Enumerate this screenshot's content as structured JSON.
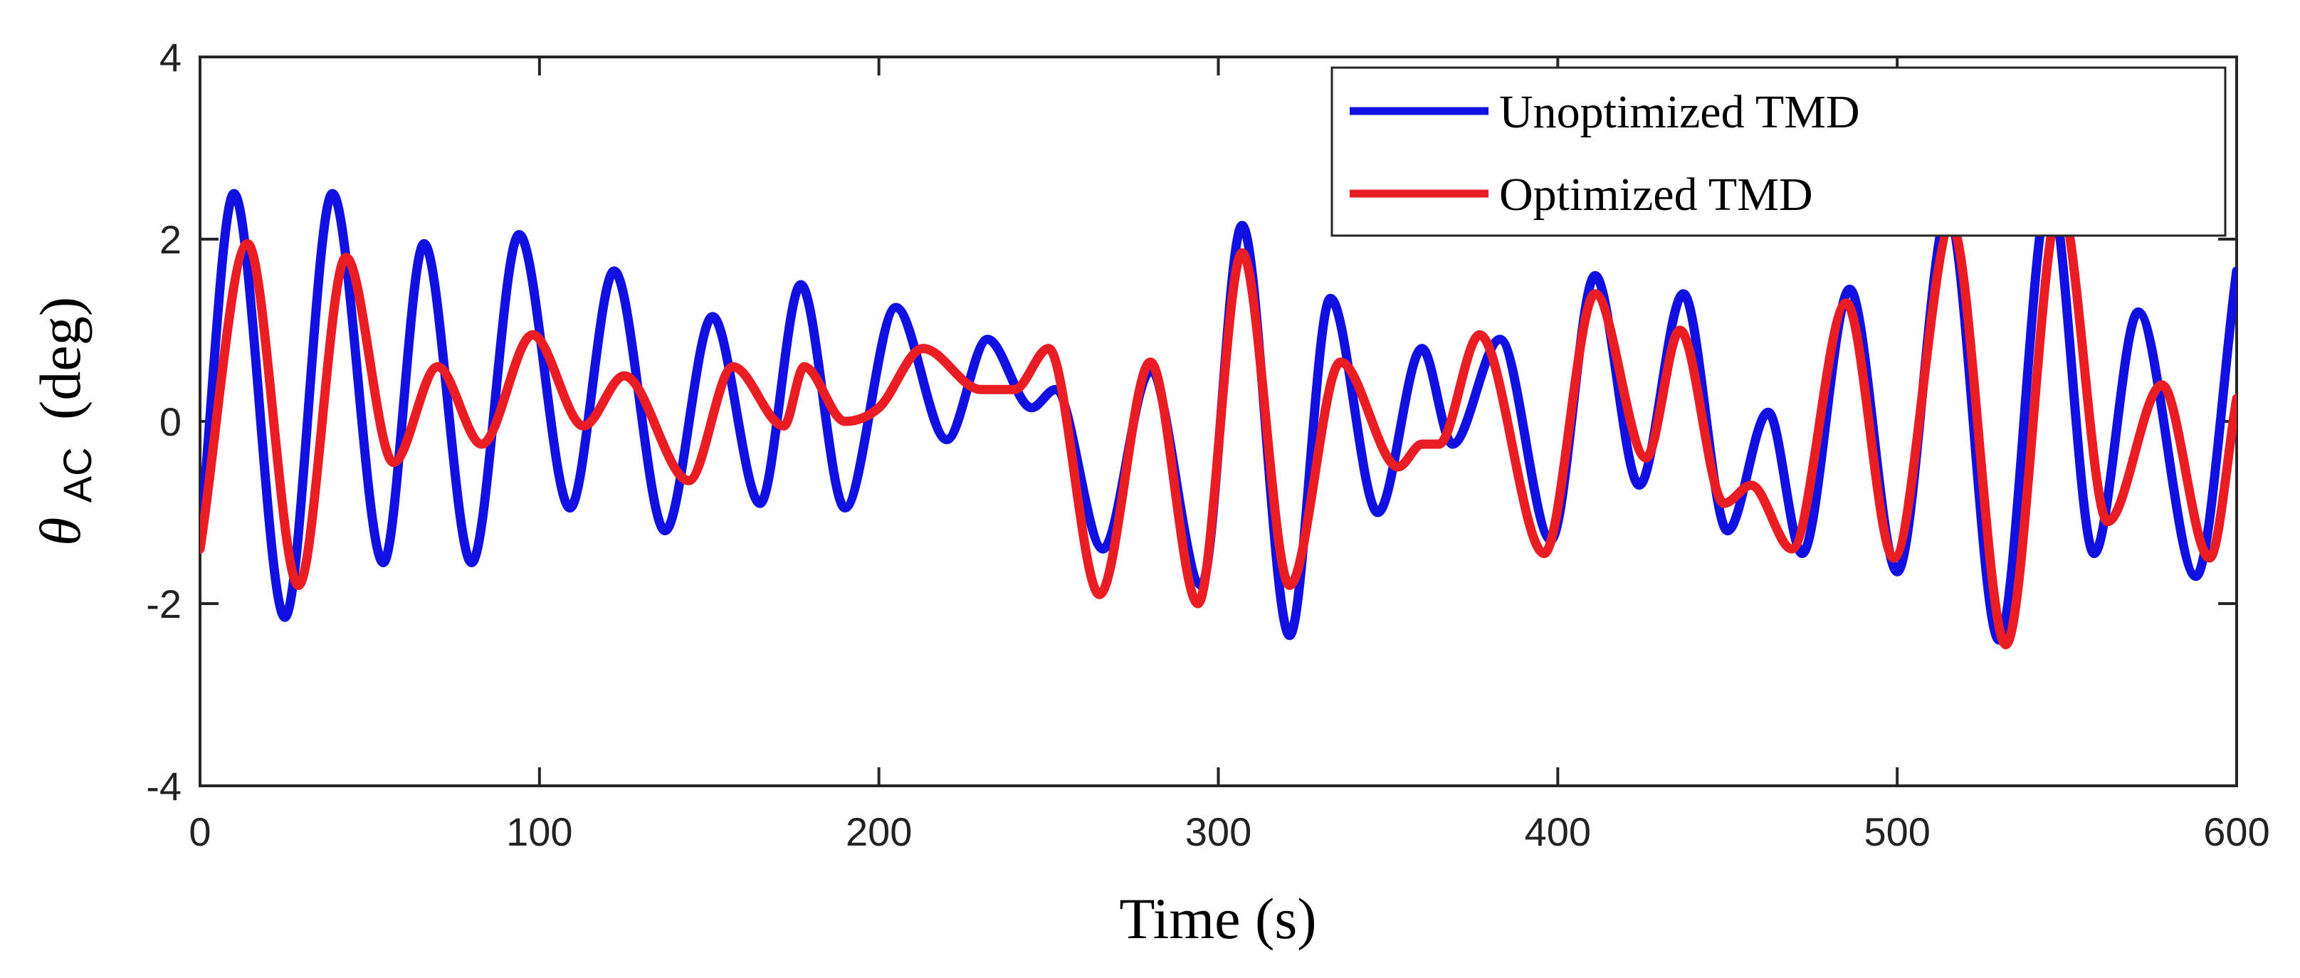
{
  "chart_data": {
    "type": "line",
    "title": "",
    "xlabel": "Time (s)",
    "ylabel": {
      "symbol": "θ",
      "subscript": "AC",
      "unit": "(deg)"
    },
    "xlim": [
      0,
      600
    ],
    "ylim": [
      -4,
      4
    ],
    "xticks": [
      0,
      100,
      200,
      300,
      400,
      500,
      600
    ],
    "yticks": [
      -4,
      -2,
      0,
      2,
      4
    ],
    "grid": false,
    "legend_position": "top-right",
    "colors": {
      "unoptimized": "#1010e0",
      "optimized": "#ea1c24",
      "axis": "#262626"
    },
    "series": [
      {
        "name": "Unoptimized TMD",
        "color": "#1010e0",
        "x": [
          0,
          10,
          25,
          39,
          54,
          66,
          80,
          94,
          109,
          122,
          137,
          151,
          165,
          177,
          190,
          205,
          220,
          232,
          245,
          252,
          266,
          280,
          295,
          307,
          321,
          333,
          347,
          360,
          369,
          383,
          398,
          411,
          424,
          437,
          450,
          462,
          472,
          486,
          500,
          515,
          530,
          545,
          558,
          571,
          588,
          600
        ],
        "y": [
          -1.3,
          2.5,
          -2.15,
          2.5,
          -1.55,
          1.95,
          -1.55,
          2.05,
          -0.95,
          1.65,
          -1.2,
          1.15,
          -0.9,
          1.5,
          -0.95,
          1.25,
          -0.2,
          0.9,
          0.15,
          0.35,
          -1.4,
          0.55,
          -1.8,
          2.15,
          -2.35,
          1.35,
          -1.0,
          0.8,
          -0.25,
          0.9,
          -1.3,
          1.6,
          -0.7,
          1.4,
          -1.2,
          0.1,
          -1.45,
          1.45,
          -1.65,
          2.3,
          -2.4,
          2.55,
          -1.45,
          1.2,
          -1.7,
          1.65
        ]
      },
      {
        "name": "Optimized TMD",
        "color": "#ea1c24",
        "x": [
          0,
          14,
          29,
          43,
          57,
          70,
          83,
          98,
          113,
          125,
          144,
          157,
          172,
          178,
          190,
          200,
          213,
          230,
          240,
          250,
          265,
          280,
          294,
          307,
          321,
          336,
          353,
          360,
          365,
          377,
          396,
          411,
          426,
          436,
          449,
          457,
          469,
          485,
          499,
          516,
          532,
          548,
          562,
          578,
          592,
          600
        ],
        "y": [
          -1.4,
          1.95,
          -1.8,
          1.8,
          -0.45,
          0.6,
          -0.25,
          0.95,
          -0.05,
          0.5,
          -0.65,
          0.6,
          -0.05,
          0.6,
          0.0,
          0.15,
          0.8,
          0.35,
          0.35,
          0.8,
          -1.9,
          0.65,
          -2.0,
          1.85,
          -1.8,
          0.65,
          -0.5,
          -0.25,
          -0.25,
          0.95,
          -1.45,
          1.4,
          -0.4,
          1.0,
          -0.9,
          -0.7,
          -1.4,
          1.3,
          -1.5,
          2.15,
          -2.45,
          2.4,
          -1.1,
          0.4,
          -1.5,
          0.25
        ]
      }
    ]
  }
}
